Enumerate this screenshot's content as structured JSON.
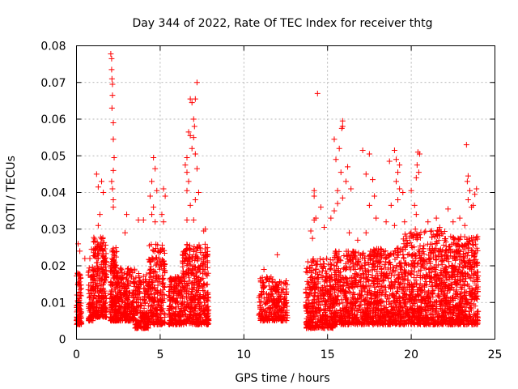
{
  "chart_data": {
    "type": "scatter",
    "title": "Day 344 of 2022, Rate Of TEC Index for receiver thtg",
    "xlabel": "GPS time / hours",
    "ylabel": "ROTI / TECUs",
    "xlim": [
      0,
      25
    ],
    "ylim": [
      0,
      0.08
    ],
    "xticks": [
      0,
      5,
      10,
      15,
      20,
      25
    ],
    "yticks": [
      0,
      0.01,
      0.02,
      0.03,
      0.04,
      0.05,
      0.06,
      0.07,
      0.08
    ],
    "ytick_labels": [
      "0",
      "0.01",
      "0.02",
      "0.03",
      "0.04",
      "0.05",
      "0.06",
      "0.07",
      "0.08"
    ],
    "grid": true,
    "marker": "+",
    "color": "#ff0000",
    "bulk_density_segments": [
      {
        "x": [
          0.0,
          0.3
        ],
        "y": [
          0.004,
          0.018
        ],
        "count": 90
      },
      {
        "x": [
          0.7,
          1.0
        ],
        "y": [
          0.005,
          0.02
        ],
        "count": 70
      },
      {
        "x": [
          1.0,
          1.8
        ],
        "y": [
          0.006,
          0.028
        ],
        "count": 260
      },
      {
        "x": [
          2.0,
          2.4
        ],
        "y": [
          0.005,
          0.025
        ],
        "count": 160
      },
      {
        "x": [
          2.4,
          3.5
        ],
        "y": [
          0.005,
          0.02
        ],
        "count": 260
      },
      {
        "x": [
          3.5,
          4.3
        ],
        "y": [
          0.003,
          0.018
        ],
        "count": 180
      },
      {
        "x": [
          4.3,
          5.3
        ],
        "y": [
          0.004,
          0.026
        ],
        "count": 240
      },
      {
        "x": [
          5.5,
          6.3
        ],
        "y": [
          0.004,
          0.017
        ],
        "count": 180
      },
      {
        "x": [
          6.3,
          7.9
        ],
        "y": [
          0.004,
          0.026
        ],
        "count": 420
      },
      {
        "x": [
          10.9,
          11.8
        ],
        "y": [
          0.005,
          0.017
        ],
        "count": 140
      },
      {
        "x": [
          11.8,
          12.6
        ],
        "y": [
          0.005,
          0.016
        ],
        "count": 140
      },
      {
        "x": [
          13.7,
          15.4
        ],
        "y": [
          0.003,
          0.022
        ],
        "count": 420
      },
      {
        "x": [
          15.4,
          17.5
        ],
        "y": [
          0.004,
          0.024
        ],
        "count": 500
      },
      {
        "x": [
          17.5,
          19.5
        ],
        "y": [
          0.004,
          0.025
        ],
        "count": 480
      },
      {
        "x": [
          19.5,
          22.0
        ],
        "y": [
          0.004,
          0.03
        ],
        "count": 650
      },
      {
        "x": [
          22.0,
          24.0
        ],
        "y": [
          0.004,
          0.028
        ],
        "count": 560
      }
    ],
    "points": [
      [
        2.05,
        0.0778
      ],
      [
        2.1,
        0.0765
      ],
      [
        2.1,
        0.0735
      ],
      [
        2.12,
        0.071
      ],
      [
        2.15,
        0.0695
      ],
      [
        2.15,
        0.0665
      ],
      [
        2.12,
        0.063
      ],
      [
        2.2,
        0.059
      ],
      [
        2.2,
        0.0545
      ],
      [
        2.25,
        0.0495
      ],
      [
        2.2,
        0.046
      ],
      [
        2.1,
        0.043
      ],
      [
        2.15,
        0.041
      ],
      [
        2.2,
        0.038
      ],
      [
        2.2,
        0.036
      ],
      [
        1.2,
        0.045
      ],
      [
        1.3,
        0.0415
      ],
      [
        1.5,
        0.043
      ],
      [
        1.6,
        0.04
      ],
      [
        1.4,
        0.034
      ],
      [
        1.3,
        0.031
      ],
      [
        0.1,
        0.026
      ],
      [
        0.2,
        0.024
      ],
      [
        0.5,
        0.022
      ],
      [
        0.8,
        0.022
      ],
      [
        0.9,
        0.0245
      ],
      [
        4.6,
        0.0495
      ],
      [
        4.7,
        0.0465
      ],
      [
        4.5,
        0.043
      ],
      [
        4.8,
        0.0405
      ],
      [
        4.4,
        0.039
      ],
      [
        4.6,
        0.036
      ],
      [
        4.5,
        0.034
      ],
      [
        4.7,
        0.032
      ],
      [
        5.2,
        0.041
      ],
      [
        5.3,
        0.039
      ],
      [
        5.1,
        0.034
      ],
      [
        5.2,
        0.032
      ],
      [
        3.0,
        0.034
      ],
      [
        3.7,
        0.0325
      ],
      [
        4.0,
        0.0325
      ],
      [
        2.9,
        0.029
      ],
      [
        7.2,
        0.07
      ],
      [
        7.1,
        0.0655
      ],
      [
        6.8,
        0.0655
      ],
      [
        6.9,
        0.0645
      ],
      [
        7.0,
        0.06
      ],
      [
        7.05,
        0.058
      ],
      [
        6.7,
        0.0565
      ],
      [
        6.8,
        0.0555
      ],
      [
        7.0,
        0.055
      ],
      [
        6.9,
        0.052
      ],
      [
        7.1,
        0.0505
      ],
      [
        6.6,
        0.0495
      ],
      [
        6.5,
        0.0475
      ],
      [
        6.6,
        0.0455
      ],
      [
        7.2,
        0.0465
      ],
      [
        6.7,
        0.043
      ],
      [
        6.6,
        0.0405
      ],
      [
        7.3,
        0.04
      ],
      [
        7.1,
        0.038
      ],
      [
        6.8,
        0.0365
      ],
      [
        6.6,
        0.0325
      ],
      [
        7.0,
        0.0325
      ],
      [
        7.6,
        0.0295
      ],
      [
        7.7,
        0.03
      ],
      [
        12.0,
        0.023
      ],
      [
        11.2,
        0.019
      ],
      [
        14.4,
        0.067
      ],
      [
        14.2,
        0.0405
      ],
      [
        14.2,
        0.039
      ],
      [
        14.3,
        0.033
      ],
      [
        14.2,
        0.0325
      ],
      [
        14.0,
        0.0295
      ],
      [
        14.1,
        0.0275
      ],
      [
        14.6,
        0.036
      ],
      [
        14.8,
        0.0305
      ],
      [
        15.9,
        0.0595
      ],
      [
        15.85,
        0.0575
      ],
      [
        15.9,
        0.058
      ],
      [
        15.4,
        0.0545
      ],
      [
        15.7,
        0.052
      ],
      [
        15.5,
        0.049
      ],
      [
        15.8,
        0.0455
      ],
      [
        16.2,
        0.047
      ],
      [
        16.1,
        0.043
      ],
      [
        16.4,
        0.041
      ],
      [
        15.6,
        0.0405
      ],
      [
        15.9,
        0.0385
      ],
      [
        15.6,
        0.037
      ],
      [
        15.4,
        0.035
      ],
      [
        15.2,
        0.033
      ],
      [
        16.3,
        0.029
      ],
      [
        17.1,
        0.0515
      ],
      [
        17.5,
        0.0505
      ],
      [
        17.3,
        0.045
      ],
      [
        17.7,
        0.0435
      ],
      [
        17.8,
        0.039
      ],
      [
        17.5,
        0.0365
      ],
      [
        17.9,
        0.033
      ],
      [
        17.3,
        0.029
      ],
      [
        16.8,
        0.027
      ],
      [
        19.0,
        0.0515
      ],
      [
        19.1,
        0.049
      ],
      [
        19.3,
        0.0475
      ],
      [
        18.7,
        0.0485
      ],
      [
        19.2,
        0.0455
      ],
      [
        19.1,
        0.043
      ],
      [
        19.3,
        0.041
      ],
      [
        19.5,
        0.04
      ],
      [
        19.2,
        0.038
      ],
      [
        18.8,
        0.0365
      ],
      [
        19.6,
        0.032
      ],
      [
        18.5,
        0.032
      ],
      [
        19.0,
        0.031
      ],
      [
        20.0,
        0.0405
      ],
      [
        20.2,
        0.0365
      ],
      [
        20.3,
        0.034
      ],
      [
        20.4,
        0.051
      ],
      [
        20.5,
        0.0505
      ],
      [
        20.35,
        0.0475
      ],
      [
        20.45,
        0.0455
      ],
      [
        20.3,
        0.044
      ],
      [
        23.3,
        0.053
      ],
      [
        23.4,
        0.0445
      ],
      [
        23.35,
        0.043
      ],
      [
        23.5,
        0.0405
      ],
      [
        23.4,
        0.038
      ],
      [
        23.6,
        0.036
      ],
      [
        23.9,
        0.041
      ],
      [
        23.8,
        0.0395
      ],
      [
        23.7,
        0.0365
      ],
      [
        22.2,
        0.0355
      ],
      [
        22.9,
        0.033
      ],
      [
        21.0,
        0.032
      ],
      [
        21.5,
        0.033
      ],
      [
        22.5,
        0.032
      ],
      [
        23.2,
        0.031
      ],
      [
        21.7,
        0.0305
      ]
    ]
  }
}
